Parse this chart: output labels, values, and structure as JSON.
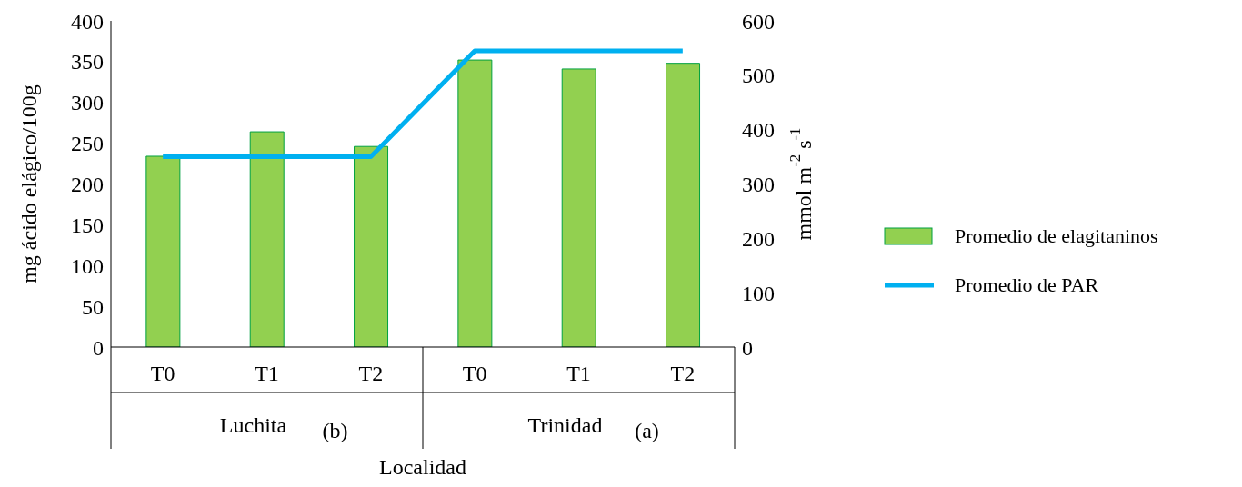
{
  "chart_data": {
    "type": "bar",
    "categories": [
      "T0",
      "T1",
      "T2",
      "T0",
      "T1",
      "T2"
    ],
    "series": [
      {
        "name": "Promedio de elagitaninos",
        "color": "#92d050",
        "values": [
          234,
          264,
          246,
          352,
          341,
          348
        ]
      },
      {
        "name": "Promedio de PAR",
        "type": "line",
        "axis": "y2",
        "color": "#00b0f0",
        "values": [
          350,
          350,
          350,
          545,
          545,
          545
        ]
      }
    ],
    "xlabel": "Localidad",
    "ylabel": "mg ácido elágico/100g",
    "y2label": "mmol m$^{-2}$ s$^{-1}$",
    "ylim": [
      0,
      400
    ],
    "yticks": [
      0,
      50,
      100,
      150,
      200,
      250,
      300,
      350,
      400
    ],
    "y2lim": [
      0,
      600
    ],
    "y2ticks": [
      0,
      100,
      200,
      300,
      400,
      500,
      600
    ],
    "annotations": [
      "Luchita",
      "(b)",
      "Trinidad",
      "(a)"
    ],
    "legend": "right",
    "marker": "none"
  }
}
